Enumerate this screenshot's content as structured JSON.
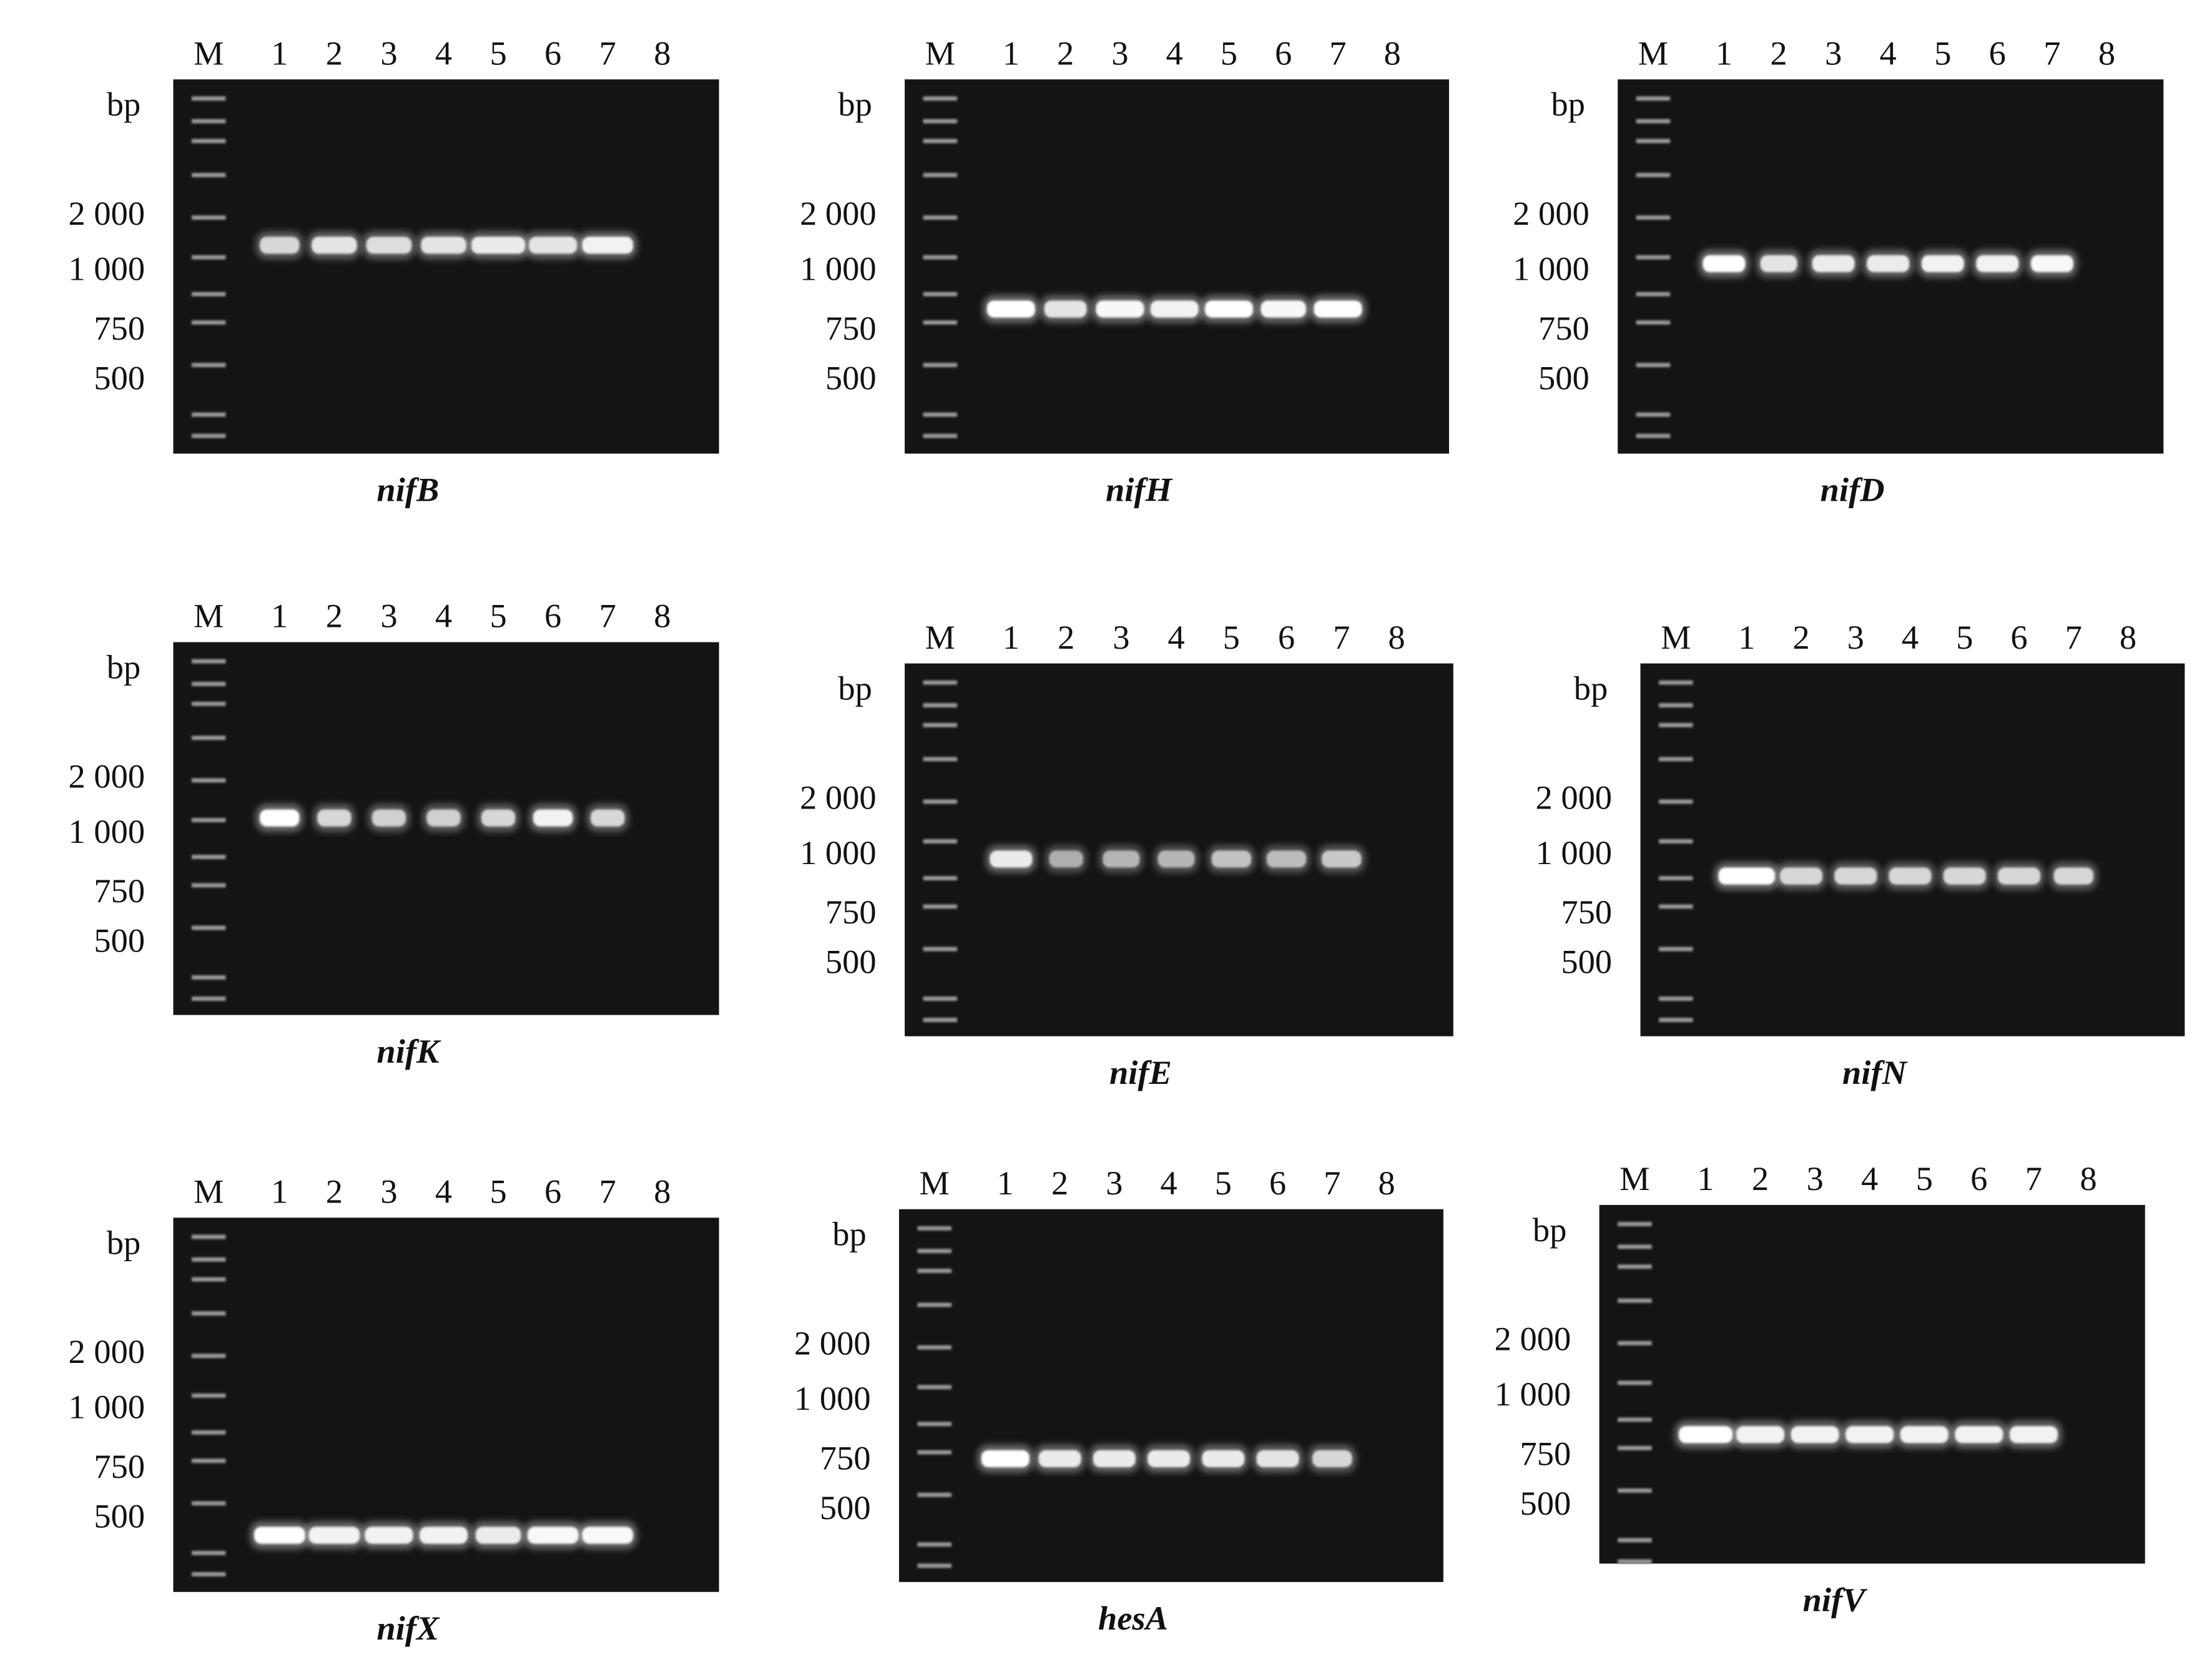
{
  "panels": [
    {
      "caption": "nifB",
      "lanes": [
        "M",
        "1",
        "2",
        "3",
        "4",
        "5",
        "6",
        "7",
        "8"
      ],
      "unit": "bp",
      "sizes": [
        "2 000",
        "1 000",
        "750",
        "500"
      ]
    },
    {
      "caption": "nifH",
      "lanes": [
        "M",
        "1",
        "2",
        "3",
        "4",
        "5",
        "6",
        "7",
        "8"
      ],
      "unit": "bp",
      "sizes": [
        "2 000",
        "1 000",
        "750",
        "500"
      ]
    },
    {
      "caption": "nifD",
      "lanes": [
        "M",
        "1",
        "2",
        "3",
        "4",
        "5",
        "6",
        "7",
        "8"
      ],
      "unit": "bp",
      "sizes": [
        "2 000",
        "1 000",
        "750",
        "500"
      ]
    },
    {
      "caption": "nifK",
      "lanes": [
        "M",
        "1",
        "2",
        "3",
        "4",
        "5",
        "6",
        "7",
        "8"
      ],
      "unit": "bp",
      "sizes": [
        "2 000",
        "1 000",
        "750",
        "500"
      ]
    },
    {
      "caption": "nifE",
      "lanes": [
        "M",
        "1",
        "2",
        "3",
        "4",
        "5",
        "6",
        "7",
        "8"
      ],
      "unit": "bp",
      "sizes": [
        "2 000",
        "1 000",
        "750",
        "500"
      ]
    },
    {
      "caption": "nifN",
      "lanes": [
        "M",
        "1",
        "2",
        "3",
        "4",
        "5",
        "6",
        "7",
        "8"
      ],
      "unit": "bp",
      "sizes": [
        "2 000",
        "1 000",
        "750",
        "500"
      ]
    },
    {
      "caption": "nifX",
      "lanes": [
        "M",
        "1",
        "2",
        "3",
        "4",
        "5",
        "6",
        "7",
        "8"
      ],
      "unit": "bp",
      "sizes": [
        "2 000",
        "1 000",
        "750",
        "500"
      ]
    },
    {
      "caption": "hesA",
      "lanes": [
        "M",
        "1",
        "2",
        "3",
        "4",
        "5",
        "6",
        "7",
        "8"
      ],
      "unit": "bp",
      "sizes": [
        "2 000",
        "1 000",
        "750",
        "500"
      ]
    },
    {
      "caption": "nifV",
      "lanes": [
        "M",
        "1",
        "2",
        "3",
        "4",
        "5",
        "6",
        "7",
        "8"
      ],
      "unit": "bp",
      "sizes": [
        "2 000",
        "1 000",
        "750",
        "500"
      ]
    }
  ]
}
